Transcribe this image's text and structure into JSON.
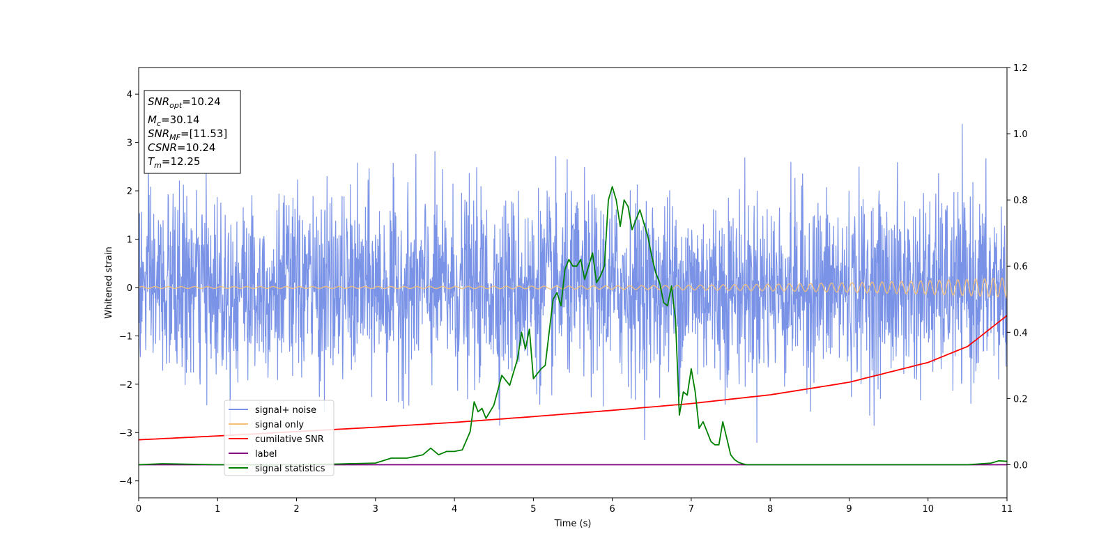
{
  "chart_data": {
    "type": "line",
    "xlabel": "Time (s)",
    "ylabel": "Whitened strain",
    "xlim": [
      0,
      11
    ],
    "ylim_left": [
      -4.35,
      4.55
    ],
    "ylim_right": [
      -0.1,
      1.2
    ],
    "x_ticks": [
      "0",
      "1",
      "2",
      "3",
      "4",
      "5",
      "6",
      "7",
      "8",
      "9",
      "10",
      "11"
    ],
    "y_ticks_left": [
      "−4",
      "−3",
      "−2",
      "−1",
      "0",
      "1",
      "2",
      "3",
      "4"
    ],
    "y_ticks_right": [
      "0.0",
      "0.2",
      "0.4",
      "0.6",
      "0.8",
      "1.0",
      "1.2"
    ],
    "legend_position": "lower-left",
    "annotation": {
      "lines": [
        {
          "sym": "SNR",
          "sub": "opt",
          "value": "=10.24"
        },
        {
          "sym": "M",
          "sub": "c",
          "value": "=30.14"
        },
        {
          "sym": "SNR",
          "sub": "MF",
          "value": "=[11.53]"
        },
        {
          "sym": "CSNR",
          "sub": "",
          "value": "=10.24"
        },
        {
          "sym": "T",
          "sub": "m",
          "value": "=12.25"
        }
      ]
    },
    "series": [
      {
        "name": "signal+ noise",
        "color": "#7a93e6",
        "axis": "left",
        "description": "noise band approx ±1.5 with spikes up to about ±3.5",
        "amplitude_sigma": 1.0
      },
      {
        "name": "signal only",
        "color": "#f5c07a",
        "axis": "left",
        "chirp_start_amplitude": 0.02,
        "chirp_end_amplitude": 0.2
      },
      {
        "name": "cumilative SNR",
        "color": "#ff0000",
        "axis": "left",
        "x": [
          0,
          1,
          2,
          3,
          4,
          5,
          6,
          7,
          8,
          9,
          10,
          10.5,
          11
        ],
        "y": [
          -3.15,
          -3.07,
          -2.98,
          -2.89,
          -2.79,
          -2.67,
          -2.54,
          -2.4,
          -2.22,
          -1.96,
          -1.55,
          -1.22,
          -0.58
        ]
      },
      {
        "name": "label",
        "color": "#800080",
        "axis": "right",
        "x": [
          0,
          11
        ],
        "y": [
          0.0,
          0.0
        ]
      },
      {
        "name": "signal statistics",
        "color": "#008000",
        "axis": "right",
        "x": [
          0,
          0.3,
          1,
          2,
          2.5,
          3,
          3.2,
          3.4,
          3.6,
          3.7,
          3.8,
          3.9,
          4.0,
          4.1,
          4.2,
          4.25,
          4.3,
          4.35,
          4.4,
          4.45,
          4.5,
          4.6,
          4.7,
          4.8,
          4.85,
          4.9,
          4.95,
          5.0,
          5.1,
          5.15,
          5.2,
          5.25,
          5.3,
          5.35,
          5.4,
          5.45,
          5.5,
          5.55,
          5.6,
          5.65,
          5.7,
          5.75,
          5.8,
          5.85,
          5.9,
          5.95,
          6.0,
          6.05,
          6.1,
          6.15,
          6.2,
          6.25,
          6.3,
          6.35,
          6.4,
          6.45,
          6.5,
          6.55,
          6.6,
          6.65,
          6.7,
          6.75,
          6.8,
          6.85,
          6.9,
          6.95,
          7.0,
          7.05,
          7.1,
          7.15,
          7.2,
          7.25,
          7.3,
          7.35,
          7.4,
          7.45,
          7.5,
          7.55,
          7.6,
          7.65,
          7.7,
          7.75,
          7.8,
          7.9,
          8.0,
          8.1,
          8.2,
          8.3,
          8.4,
          8.5,
          9,
          10,
          10.5,
          10.8,
          10.9,
          11
        ],
        "y": [
          0.0,
          0.003,
          0.0,
          0.0,
          0.002,
          0.005,
          0.02,
          0.02,
          0.03,
          0.05,
          0.03,
          0.04,
          0.04,
          0.045,
          0.1,
          0.19,
          0.16,
          0.17,
          0.14,
          0.16,
          0.18,
          0.27,
          0.24,
          0.32,
          0.4,
          0.35,
          0.41,
          0.26,
          0.29,
          0.3,
          0.4,
          0.5,
          0.52,
          0.48,
          0.59,
          0.62,
          0.6,
          0.6,
          0.62,
          0.56,
          0.6,
          0.64,
          0.55,
          0.57,
          0.6,
          0.8,
          0.84,
          0.8,
          0.72,
          0.8,
          0.78,
          0.71,
          0.74,
          0.77,
          0.73,
          0.69,
          0.63,
          0.58,
          0.55,
          0.49,
          0.48,
          0.54,
          0.44,
          0.15,
          0.22,
          0.21,
          0.29,
          0.22,
          0.11,
          0.13,
          0.1,
          0.07,
          0.06,
          0.06,
          0.13,
          0.08,
          0.03,
          0.015,
          0.007,
          0.003,
          0.0,
          0.0,
          0.0,
          0.0,
          0.0,
          0.0,
          0.0,
          0.0,
          0.0,
          0.0,
          0.0,
          0.0,
          0.0,
          0.005,
          0.012,
          0.01
        ]
      }
    ]
  }
}
